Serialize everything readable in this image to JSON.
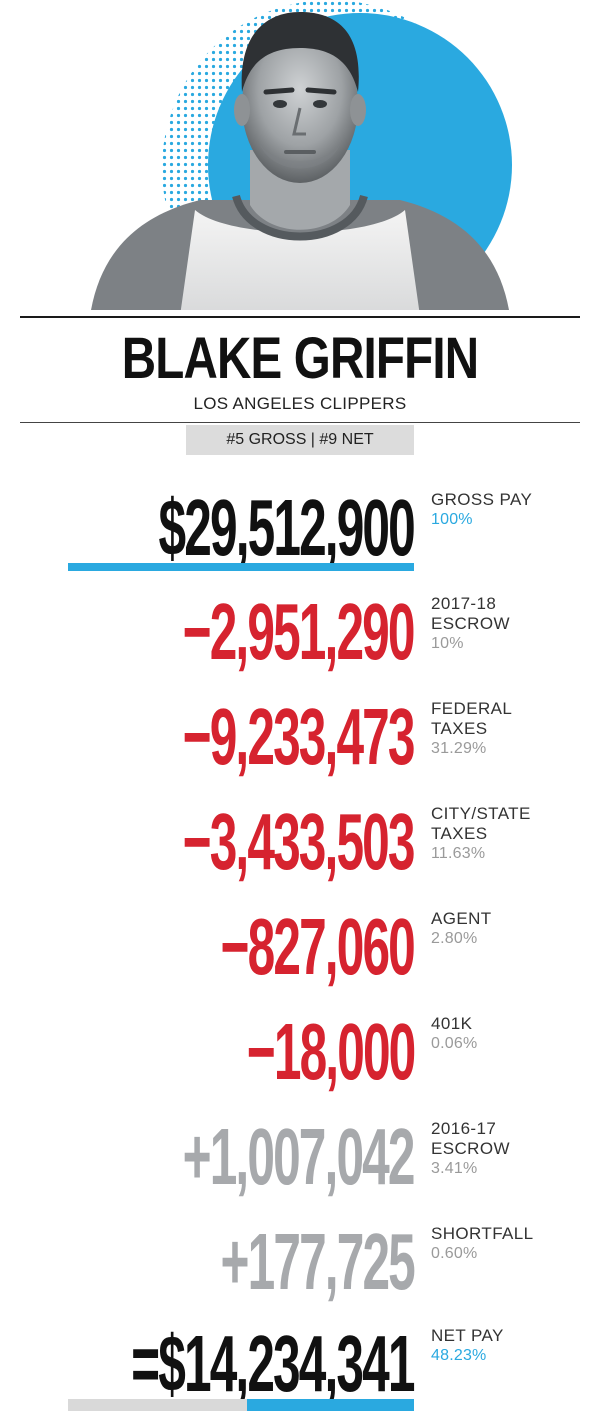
{
  "player": {
    "name": "BLAKE GRIFFIN",
    "team": "LOS ANGELES CLIPPERS",
    "rank": "#5 GROSS | #9 NET"
  },
  "colors": {
    "accent_blue": "#2aa9e0",
    "deduction_red": "#d6232f",
    "credit_gray": "#a7a9ac",
    "ink": "#111111"
  },
  "rows": [
    {
      "amount": "$29,512,900",
      "label1": "GROSS PAY",
      "label2": "",
      "pct": "100%"
    },
    {
      "amount": "−2,951,290",
      "label1": "2017-18",
      "label2": "ESCROW",
      "pct": "10%"
    },
    {
      "amount": "−9,233,473",
      "label1": "FEDERAL",
      "label2": "TAXES",
      "pct": "31.29%"
    },
    {
      "amount": "−3,433,503",
      "label1": "CITY/STATE",
      "label2": "TAXES",
      "pct": "11.63%"
    },
    {
      "amount": "−827,060",
      "label1": "AGENT",
      "label2": "",
      "pct": "2.80%"
    },
    {
      "amount": "−18,000",
      "label1": "401K",
      "label2": "",
      "pct": "0.06%"
    },
    {
      "amount": "+1,007,042",
      "label1": "2016-17",
      "label2": "ESCROW",
      "pct": "3.41%"
    },
    {
      "amount": "+177,725",
      "label1": "SHORTFALL",
      "label2": "",
      "pct": "0.60%"
    },
    {
      "amount": "=$14,234,341",
      "label1": "NET PAY",
      "label2": "",
      "pct": "48.23%"
    }
  ],
  "bars": {
    "gross_fraction": 1.0,
    "net_fraction": 0.4823
  },
  "icons": {
    "portrait": "player-portrait-photo",
    "backdrop": "blue-circle-halftone-backdrop"
  }
}
